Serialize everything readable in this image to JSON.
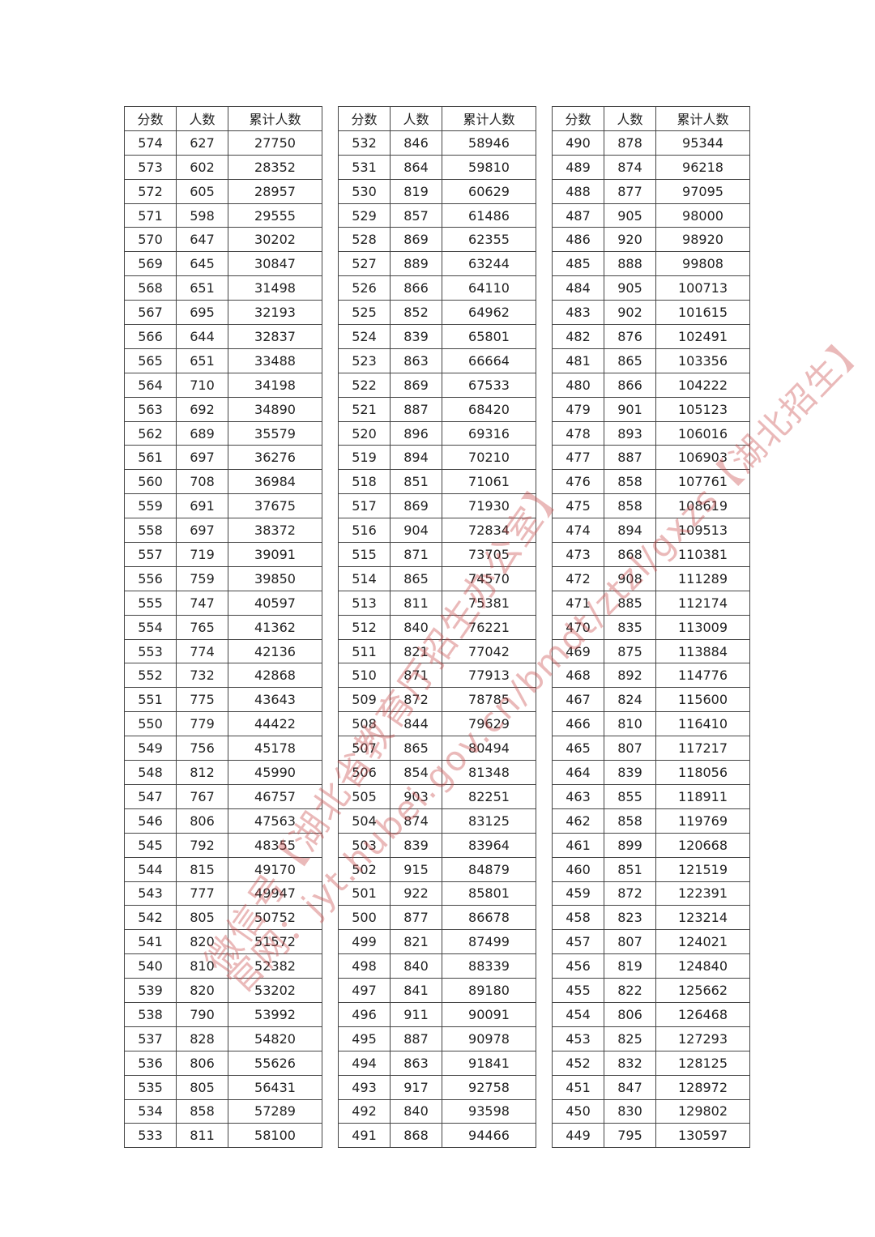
{
  "headers": [
    "分数",
    "人数",
    "累计人数"
  ],
  "tables": [
    [
      [
        574,
        627,
        27750
      ],
      [
        573,
        602,
        28352
      ],
      [
        572,
        605,
        28957
      ],
      [
        571,
        598,
        29555
      ],
      [
        570,
        647,
        30202
      ],
      [
        569,
        645,
        30847
      ],
      [
        568,
        651,
        31498
      ],
      [
        567,
        695,
        32193
      ],
      [
        566,
        644,
        32837
      ],
      [
        565,
        651,
        33488
      ],
      [
        564,
        710,
        34198
      ],
      [
        563,
        692,
        34890
      ],
      [
        562,
        689,
        35579
      ],
      [
        561,
        697,
        36276
      ],
      [
        560,
        708,
        36984
      ],
      [
        559,
        691,
        37675
      ],
      [
        558,
        697,
        38372
      ],
      [
        557,
        719,
        39091
      ],
      [
        556,
        759,
        39850
      ],
      [
        555,
        747,
        40597
      ],
      [
        554,
        765,
        41362
      ],
      [
        553,
        774,
        42136
      ],
      [
        552,
        732,
        42868
      ],
      [
        551,
        775,
        43643
      ],
      [
        550,
        779,
        44422
      ],
      [
        549,
        756,
        45178
      ],
      [
        548,
        812,
        45990
      ],
      [
        547,
        767,
        46757
      ],
      [
        546,
        806,
        47563
      ],
      [
        545,
        792,
        48355
      ],
      [
        544,
        815,
        49170
      ],
      [
        543,
        777,
        49947
      ],
      [
        542,
        805,
        50752
      ],
      [
        541,
        820,
        51572
      ],
      [
        540,
        810,
        52382
      ],
      [
        539,
        820,
        53202
      ],
      [
        538,
        790,
        53992
      ],
      [
        537,
        828,
        54820
      ],
      [
        536,
        806,
        55626
      ],
      [
        535,
        805,
        56431
      ],
      [
        534,
        858,
        57289
      ],
      [
        533,
        811,
        58100
      ]
    ],
    [
      [
        532,
        846,
        58946
      ],
      [
        531,
        864,
        59810
      ],
      [
        530,
        819,
        60629
      ],
      [
        529,
        857,
        61486
      ],
      [
        528,
        869,
        62355
      ],
      [
        527,
        889,
        63244
      ],
      [
        526,
        866,
        64110
      ],
      [
        525,
        852,
        64962
      ],
      [
        524,
        839,
        65801
      ],
      [
        523,
        863,
        66664
      ],
      [
        522,
        869,
        67533
      ],
      [
        521,
        887,
        68420
      ],
      [
        520,
        896,
        69316
      ],
      [
        519,
        894,
        70210
      ],
      [
        518,
        851,
        71061
      ],
      [
        517,
        869,
        71930
      ],
      [
        516,
        904,
        72834
      ],
      [
        515,
        871,
        73705
      ],
      [
        514,
        865,
        74570
      ],
      [
        513,
        811,
        75381
      ],
      [
        512,
        840,
        76221
      ],
      [
        511,
        821,
        77042
      ],
      [
        510,
        871,
        77913
      ],
      [
        509,
        872,
        78785
      ],
      [
        508,
        844,
        79629
      ],
      [
        507,
        865,
        80494
      ],
      [
        506,
        854,
        81348
      ],
      [
        505,
        903,
        82251
      ],
      [
        504,
        874,
        83125
      ],
      [
        503,
        839,
        83964
      ],
      [
        502,
        915,
        84879
      ],
      [
        501,
        922,
        85801
      ],
      [
        500,
        877,
        86678
      ],
      [
        499,
        821,
        87499
      ],
      [
        498,
        840,
        88339
      ],
      [
        497,
        841,
        89180
      ],
      [
        496,
        911,
        90091
      ],
      [
        495,
        887,
        90978
      ],
      [
        494,
        863,
        91841
      ],
      [
        493,
        917,
        92758
      ],
      [
        492,
        840,
        93598
      ],
      [
        491,
        868,
        94466
      ]
    ],
    [
      [
        490,
        878,
        95344
      ],
      [
        489,
        874,
        96218
      ],
      [
        488,
        877,
        97095
      ],
      [
        487,
        905,
        98000
      ],
      [
        486,
        920,
        98920
      ],
      [
        485,
        888,
        99808
      ],
      [
        484,
        905,
        100713
      ],
      [
        483,
        902,
        101615
      ],
      [
        482,
        876,
        102491
      ],
      [
        481,
        865,
        103356
      ],
      [
        480,
        866,
        104222
      ],
      [
        479,
        901,
        105123
      ],
      [
        478,
        893,
        106016
      ],
      [
        477,
        887,
        106903
      ],
      [
        476,
        858,
        107761
      ],
      [
        475,
        858,
        108619
      ],
      [
        474,
        894,
        109513
      ],
      [
        473,
        868,
        110381
      ],
      [
        472,
        908,
        111289
      ],
      [
        471,
        885,
        112174
      ],
      [
        470,
        835,
        113009
      ],
      [
        469,
        875,
        113884
      ],
      [
        468,
        892,
        114776
      ],
      [
        467,
        824,
        115600
      ],
      [
        466,
        810,
        116410
      ],
      [
        465,
        807,
        117217
      ],
      [
        464,
        839,
        118056
      ],
      [
        463,
        855,
        118911
      ],
      [
        462,
        858,
        119769
      ],
      [
        461,
        899,
        120668
      ],
      [
        460,
        851,
        121519
      ],
      [
        459,
        872,
        122391
      ],
      [
        458,
        823,
        123214
      ],
      [
        457,
        807,
        124021
      ],
      [
        456,
        819,
        124840
      ],
      [
        455,
        822,
        125662
      ],
      [
        454,
        806,
        126468
      ],
      [
        453,
        825,
        127293
      ],
      [
        452,
        832,
        128125
      ],
      [
        451,
        847,
        128972
      ],
      [
        450,
        830,
        129802
      ],
      [
        449,
        795,
        130597
      ]
    ]
  ],
  "watermark": {
    "line1": "微信号【湖北省教育厅招生办公室】",
    "line2": "官网：jyt.hubei.gov.cn/bmdt/ztzl/gxzs【湖北招生】",
    "color": "#c84646"
  }
}
